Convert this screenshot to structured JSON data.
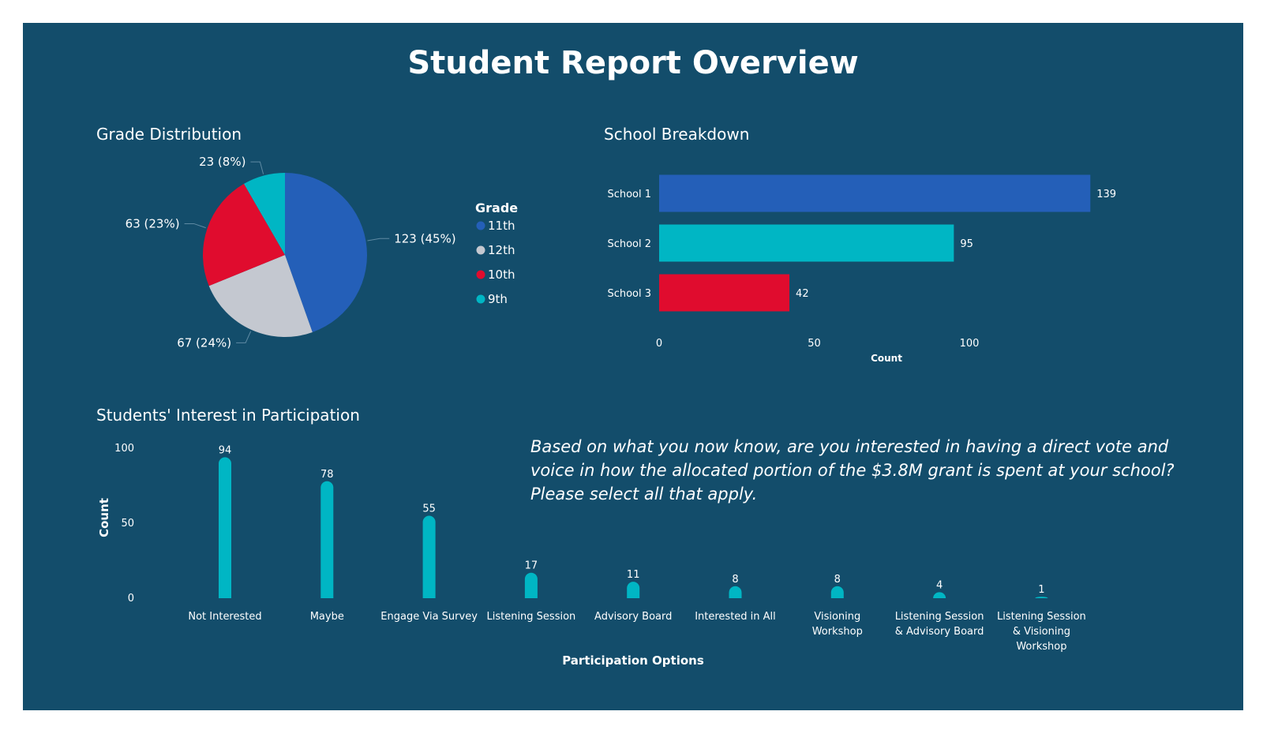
{
  "title": "Student Report Overview",
  "question": "Based on what you now know, are you interested in having a direct vote and voice in how the allocated portion of the $3.8M grant is spent at your school? Please select all that apply.",
  "colors": {
    "background": "#134d6b",
    "blue": "#245fb8",
    "teal": "#00b6c4",
    "red": "#e00c2e",
    "gray": "#c4c8d0"
  },
  "chart_data": [
    {
      "type": "pie",
      "title": "Grade Distribution",
      "legend_title": "Grade",
      "slices": [
        {
          "label": "11th",
          "value": 123,
          "display": "123 (45%)",
          "color": "#245fb8"
        },
        {
          "label": "12th",
          "value": 67,
          "display": "67 (24%)",
          "color": "#c4c8d0"
        },
        {
          "label": "10th",
          "value": 63,
          "display": "63 (23%)",
          "color": "#e00c2e"
        },
        {
          "label": "9th",
          "value": 23,
          "display": "23 (8%)",
          "color": "#00b6c4"
        }
      ]
    },
    {
      "type": "bar",
      "orientation": "horizontal",
      "title": "School Breakdown",
      "categories": [
        "School 1",
        "School 2",
        "School 3"
      ],
      "values": [
        139,
        95,
        42
      ],
      "colors": [
        "#245fb8",
        "#00b6c4",
        "#e00c2e"
      ],
      "xlabel": "Count",
      "xticks": [
        "0",
        "50",
        "100"
      ],
      "xlim": [
        0,
        139
      ]
    },
    {
      "type": "bar",
      "title": "Students' Interest in Participation",
      "categories": [
        [
          "Not Interested"
        ],
        [
          "Maybe"
        ],
        [
          "Engage Via Survey"
        ],
        [
          "Listening Session"
        ],
        [
          "Advisory Board"
        ],
        [
          "Interested in All"
        ],
        [
          "Visioning",
          "Workshop"
        ],
        [
          "Listening Session",
          "& Advisory Board"
        ],
        [
          "Listening Session",
          "& Visioning",
          "Workshop"
        ]
      ],
      "values": [
        94,
        78,
        55,
        17,
        11,
        8,
        8,
        4,
        1
      ],
      "xlabel": "Participation Options",
      "ylabel": "Count",
      "yticks": [
        "0",
        "50",
        "100"
      ],
      "ylim": [
        0,
        100
      ],
      "color": "#00b6c4"
    }
  ]
}
